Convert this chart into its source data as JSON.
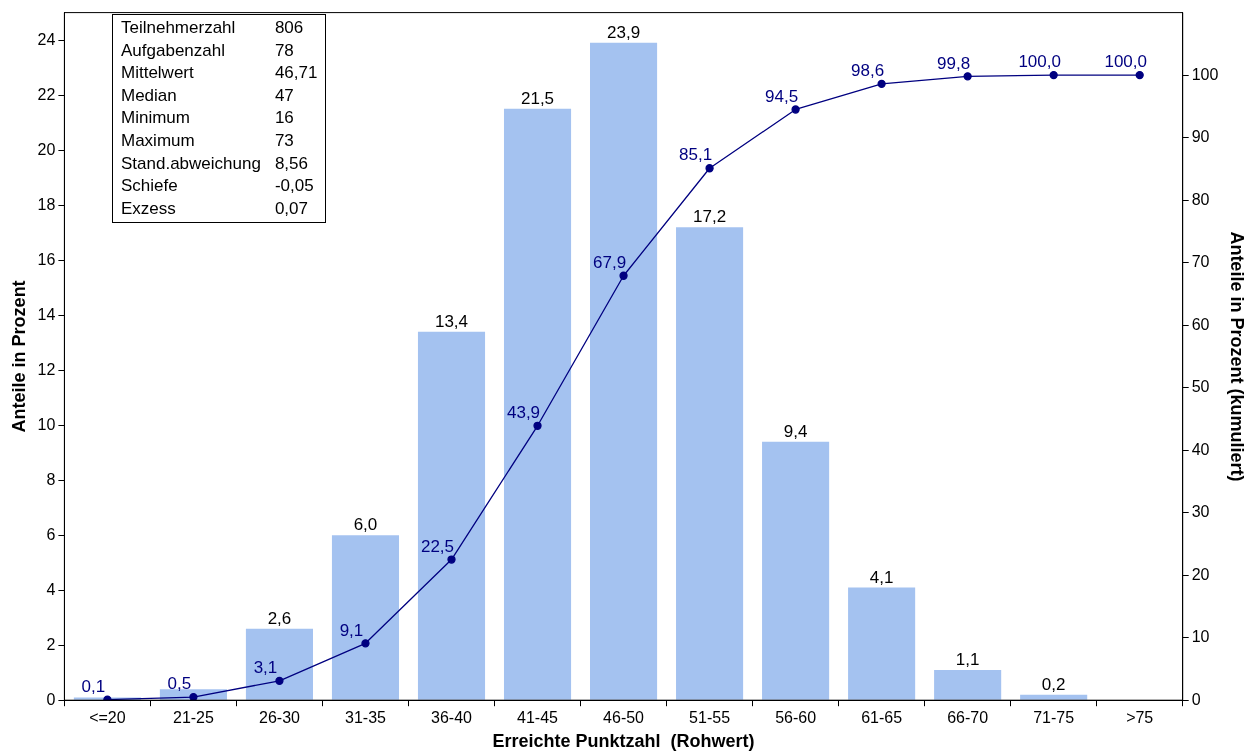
{
  "chart_data": {
    "type": "bar",
    "categories": [
      "<=20",
      "21-25",
      "26-30",
      "31-35",
      "36-40",
      "41-45",
      "46-50",
      "51-55",
      "56-60",
      "61-65",
      "66-70",
      "71-75",
      ">75"
    ],
    "series": [
      {
        "color": "#a4c2f0",
        "values": [
          0.1,
          0.4,
          2.6,
          6.0,
          13.4,
          21.5,
          23.9,
          17.2,
          9.4,
          4.1,
          1.1,
          0.2,
          0.0
        ],
        "value_labels": [
          null,
          null,
          "2,6",
          "6,0",
          "13,4",
          "21,5",
          "23,9",
          "17,2",
          "9,4",
          "4,1",
          "1,1",
          "0,2",
          null
        ]
      },
      {
        "type": "line",
        "axis": "y2",
        "color": "#000080",
        "values": [
          0.1,
          0.5,
          3.1,
          9.1,
          22.5,
          43.9,
          67.9,
          85.1,
          94.5,
          98.6,
          99.8,
          100.0,
          100.0
        ],
        "value_labels": [
          "0,1",
          "0,5",
          "3,1",
          "9,1",
          "22,5",
          "43,9",
          "67,9",
          "85,1",
          "94,5",
          "98,6",
          "99,8",
          "100,0",
          "100,0"
        ]
      }
    ],
    "xlabel": "Erreichte Punktzahl  (Rohwert)",
    "ylabel": "Anteile in Prozent",
    "y2label": "Anteile in Prozent (kumuliert)",
    "ylim": [
      0,
      25
    ],
    "yticks": [
      0,
      2,
      4,
      6,
      8,
      10,
      12,
      14,
      16,
      18,
      20,
      22,
      24
    ],
    "y2lim": [
      0,
      110
    ],
    "y2ticks": [
      0,
      10,
      20,
      30,
      40,
      50,
      60,
      70,
      80,
      90,
      100
    ],
    "marker": "circle",
    "line_style": "solid",
    "grid": false,
    "legend": false,
    "annotations": [
      "Teilnehmerzahl",
      "806",
      "Aufgabenzahl",
      "78",
      "Mittelwert",
      "46,71",
      "Median",
      "47",
      "Minimum",
      "16",
      "Maximum",
      "73",
      "Stand.abweichung",
      "8,56",
      "Schiefe",
      "-0,05",
      "Exzess",
      "0,07"
    ]
  }
}
